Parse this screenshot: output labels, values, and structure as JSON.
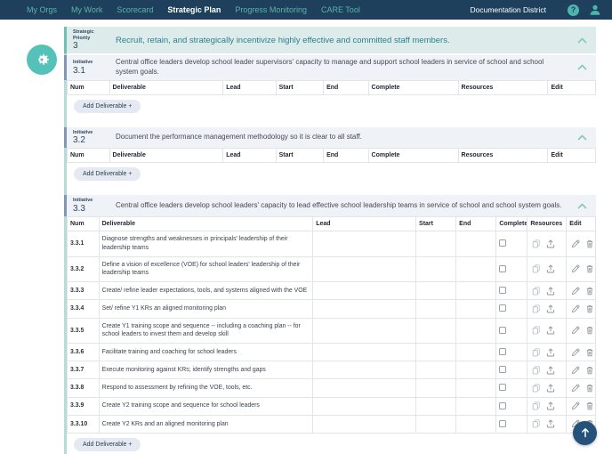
{
  "nav": {
    "items": [
      {
        "label": "My Orgs",
        "active": false
      },
      {
        "label": "My Work",
        "active": false
      },
      {
        "label": "Scorecard",
        "active": false
      },
      {
        "label": "Strategic Plan",
        "active": true
      },
      {
        "label": "Progress Monitoring",
        "active": false
      },
      {
        "label": "CARE Tool",
        "active": false
      }
    ],
    "org_name": "Documentation District",
    "help_glyph": "?"
  },
  "colors": {
    "nav_background": "#1e405d",
    "nav_link": "#5ab4aa",
    "priority_header_bg": "#ddecea",
    "priority_accent": "#6fbfb4",
    "priority_title": "#2b808d",
    "initiative_header_bg": "#eff2f7",
    "initiative_accent": "#8496b5",
    "logo_teal": "#54c2b9",
    "back_to_top_bg": "#24527b"
  },
  "labels": {
    "add_deliverable": "Add Deliverable +"
  },
  "priority": {
    "label_line1": "Strategic",
    "label_line2": "Priority",
    "number": "3",
    "title": "Recruit, retain, and strategically incentivize highly effective and committed staff members."
  },
  "table_columns": [
    "Num",
    "Deliverable",
    "Lead",
    "Start",
    "End",
    "Complete",
    "Resources",
    "Edit"
  ],
  "initiatives": [
    {
      "label": "Initiative",
      "number": "3.1",
      "description": "Central office leaders develop school leader supervisors' capacity to manage and support school leaders in service of school and school system goals.",
      "deliverables": []
    },
    {
      "label": "Initiative",
      "number": "3.2",
      "description": "Document the performance management methodology so it is clear to all staff.",
      "deliverables": []
    },
    {
      "label": "Initiative",
      "number": "3.3",
      "description": "Central office leaders develop school leaders' capacity to lead effective school leadership teams in service of school and school system goals.",
      "deliverables": [
        {
          "num": "3.3.1",
          "deliverable": "Diagnose strengths and weaknesses in principals' leadership of their leadership teams",
          "lead": "",
          "start": "",
          "end": "",
          "complete": false
        },
        {
          "num": "3.3.2",
          "deliverable": "Define a vision of excellence (VOE) for school leaders' leadership of their leadership teams",
          "lead": "",
          "start": "",
          "end": "",
          "complete": false
        },
        {
          "num": "3.3.3",
          "deliverable": "Create/ refine leader expectations, tools, and systems aligned with the VOE",
          "lead": "",
          "start": "",
          "end": "",
          "complete": false
        },
        {
          "num": "3.3.4",
          "deliverable": "Set/ refine Y1 KRs an aligned monitoring plan",
          "lead": "",
          "start": "",
          "end": "",
          "complete": false
        },
        {
          "num": "3.3.5",
          "deliverable": "Create Y1 training scope and sequence -- including a coaching plan -- for school leaders to invest them and develop skill",
          "lead": "",
          "start": "",
          "end": "",
          "complete": false
        },
        {
          "num": "3.3.6",
          "deliverable": "Facilitate training and coaching for school leaders",
          "lead": "",
          "start": "",
          "end": "",
          "complete": false
        },
        {
          "num": "3.3.7",
          "deliverable": "Execute monitoring against KRs; identify strengths and gaps",
          "lead": "",
          "start": "",
          "end": "",
          "complete": false
        },
        {
          "num": "3.3.8",
          "deliverable": "Respond to assessment by refining the VOE, tools, etc.",
          "lead": "",
          "start": "",
          "end": "",
          "complete": false
        },
        {
          "num": "3.3.9",
          "deliverable": "Create Y2 training scope and sequence for school leaders",
          "lead": "",
          "start": "",
          "end": "",
          "complete": false
        },
        {
          "num": "3.3.10",
          "deliverable": "Create Y2 KRs and an aligned monitoring plan",
          "lead": "",
          "start": "",
          "end": "",
          "complete": false
        }
      ]
    }
  ]
}
